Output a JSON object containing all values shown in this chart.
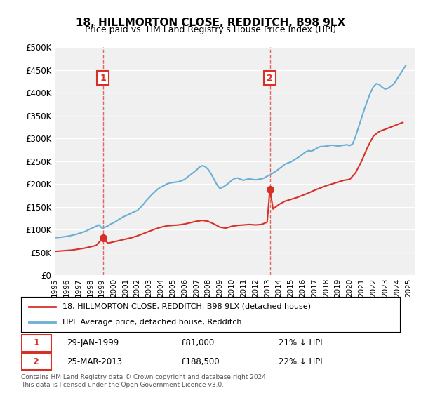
{
  "title": "18, HILLMORTON CLOSE, REDDITCH, B98 9LX",
  "subtitle": "Price paid vs. HM Land Registry's House Price Index (HPI)",
  "ylabel_ticks": [
    "£0",
    "£50K",
    "£100K",
    "£150K",
    "£200K",
    "£250K",
    "£300K",
    "£350K",
    "£400K",
    "£450K",
    "£500K"
  ],
  "ytick_values": [
    0,
    50000,
    100000,
    150000,
    200000,
    250000,
    300000,
    350000,
    400000,
    450000,
    500000
  ],
  "ylim": [
    0,
    500000
  ],
  "xlim_start": 1995.0,
  "xlim_end": 2025.5,
  "x_years": [
    1995,
    1996,
    1997,
    1998,
    1999,
    2000,
    2001,
    2002,
    2003,
    2004,
    2005,
    2006,
    2007,
    2008,
    2009,
    2010,
    2011,
    2012,
    2013,
    2014,
    2015,
    2016,
    2017,
    2018,
    2019,
    2020,
    2021,
    2022,
    2023,
    2024,
    2025
  ],
  "hpi_line_color": "#6baed6",
  "price_line_color": "#d73027",
  "transaction1_x": 1999.08,
  "transaction1_y": 81000,
  "transaction1_label": "1",
  "transaction1_date": "29-JAN-1999",
  "transaction1_price": "£81,000",
  "transaction1_note": "21% ↓ HPI",
  "transaction2_x": 2013.23,
  "transaction2_y": 188500,
  "transaction2_label": "2",
  "transaction2_date": "25-MAR-2013",
  "transaction2_price": "£188,500",
  "transaction2_note": "22% ↓ HPI",
  "vline1_x": 1999.08,
  "vline2_x": 2013.23,
  "legend_line1": "18, HILLMORTON CLOSE, REDDITCH, B98 9LX (detached house)",
  "legend_line2": "HPI: Average price, detached house, Redditch",
  "footnote": "Contains HM Land Registry data © Crown copyright and database right 2024.\nThis data is licensed under the Open Government Licence v3.0.",
  "background_color": "#ffffff",
  "plot_bg_color": "#f0f0f0",
  "grid_color": "#ffffff",
  "hpi_data_x": [
    1995.0,
    1995.25,
    1995.5,
    1995.75,
    1996.0,
    1996.25,
    1996.5,
    1996.75,
    1997.0,
    1997.25,
    1997.5,
    1997.75,
    1998.0,
    1998.25,
    1998.5,
    1998.75,
    1999.0,
    1999.25,
    1999.5,
    1999.75,
    2000.0,
    2000.25,
    2000.5,
    2000.75,
    2001.0,
    2001.25,
    2001.5,
    2001.75,
    2002.0,
    2002.25,
    2002.5,
    2002.75,
    2003.0,
    2003.25,
    2003.5,
    2003.75,
    2004.0,
    2004.25,
    2004.5,
    2004.75,
    2005.0,
    2005.25,
    2005.5,
    2005.75,
    2006.0,
    2006.25,
    2006.5,
    2006.75,
    2007.0,
    2007.25,
    2007.5,
    2007.75,
    2008.0,
    2008.25,
    2008.5,
    2008.75,
    2009.0,
    2009.25,
    2009.5,
    2009.75,
    2010.0,
    2010.25,
    2010.5,
    2010.75,
    2011.0,
    2011.25,
    2011.5,
    2011.75,
    2012.0,
    2012.25,
    2012.5,
    2012.75,
    2013.0,
    2013.25,
    2013.5,
    2013.75,
    2014.0,
    2014.25,
    2014.5,
    2014.75,
    2015.0,
    2015.25,
    2015.5,
    2015.75,
    2016.0,
    2016.25,
    2016.5,
    2016.75,
    2017.0,
    2017.25,
    2017.5,
    2017.75,
    2018.0,
    2018.25,
    2018.5,
    2018.75,
    2019.0,
    2019.25,
    2019.5,
    2019.75,
    2020.0,
    2020.25,
    2020.5,
    2020.75,
    2021.0,
    2021.25,
    2021.5,
    2021.75,
    2022.0,
    2022.25,
    2022.5,
    2022.75,
    2023.0,
    2023.25,
    2023.5,
    2023.75,
    2024.0,
    2024.25,
    2024.5,
    2024.75
  ],
  "hpi_data_y": [
    82000,
    82500,
    83000,
    84000,
    85000,
    86000,
    87500,
    89000,
    91000,
    93000,
    95000,
    98000,
    101000,
    104000,
    107000,
    110000,
    103000,
    105000,
    108000,
    112000,
    115000,
    119000,
    123000,
    127000,
    130000,
    133000,
    136000,
    139000,
    142000,
    148000,
    155000,
    163000,
    170000,
    177000,
    183000,
    189000,
    193000,
    196000,
    200000,
    202000,
    203000,
    204000,
    205000,
    207000,
    210000,
    215000,
    220000,
    225000,
    230000,
    237000,
    240000,
    238000,
    232000,
    222000,
    210000,
    198000,
    190000,
    193000,
    197000,
    202000,
    208000,
    212000,
    213000,
    210000,
    208000,
    210000,
    211000,
    210000,
    209000,
    210000,
    211000,
    213000,
    217000,
    220000,
    224000,
    228000,
    233000,
    238000,
    243000,
    246000,
    248000,
    252000,
    256000,
    260000,
    265000,
    270000,
    273000,
    272000,
    275000,
    279000,
    282000,
    282000,
    283000,
    284000,
    285000,
    284000,
    283000,
    284000,
    285000,
    286000,
    284000,
    288000,
    305000,
    325000,
    345000,
    365000,
    383000,
    400000,
    413000,
    420000,
    418000,
    412000,
    408000,
    410000,
    415000,
    420000,
    430000,
    440000,
    450000,
    460000
  ],
  "price_data_x": [
    1995.0,
    1995.5,
    1996.0,
    1996.5,
    1997.0,
    1997.5,
    1998.0,
    1998.5,
    1999.08,
    1999.5,
    2000.0,
    2000.5,
    2001.0,
    2001.5,
    2002.0,
    2002.5,
    2003.0,
    2003.5,
    2004.0,
    2004.5,
    2005.0,
    2005.5,
    2006.0,
    2006.5,
    2007.0,
    2007.5,
    2008.0,
    2008.5,
    2009.0,
    2009.5,
    2010.0,
    2010.5,
    2011.0,
    2011.5,
    2012.0,
    2012.5,
    2013.0,
    2013.23,
    2013.5,
    2014.0,
    2014.5,
    2015.0,
    2015.5,
    2016.0,
    2016.5,
    2017.0,
    2017.5,
    2018.0,
    2018.5,
    2019.0,
    2019.5,
    2020.0,
    2020.5,
    2021.0,
    2021.5,
    2022.0,
    2022.5,
    2023.0,
    2023.5,
    2024.0,
    2024.5
  ],
  "price_data_y": [
    52000,
    53000,
    54000,
    55000,
    57000,
    59000,
    62000,
    65000,
    81000,
    70000,
    73000,
    76000,
    79000,
    82000,
    86000,
    91000,
    96000,
    101000,
    105000,
    108000,
    109000,
    110000,
    112000,
    115000,
    118000,
    120000,
    118000,
    112000,
    105000,
    103000,
    107000,
    109000,
    110000,
    111000,
    110000,
    111000,
    116000,
    188500,
    145000,
    155000,
    162000,
    166000,
    170000,
    175000,
    180000,
    186000,
    191000,
    196000,
    200000,
    204000,
    208000,
    210000,
    225000,
    250000,
    280000,
    305000,
    315000,
    320000,
    325000,
    330000,
    335000
  ]
}
